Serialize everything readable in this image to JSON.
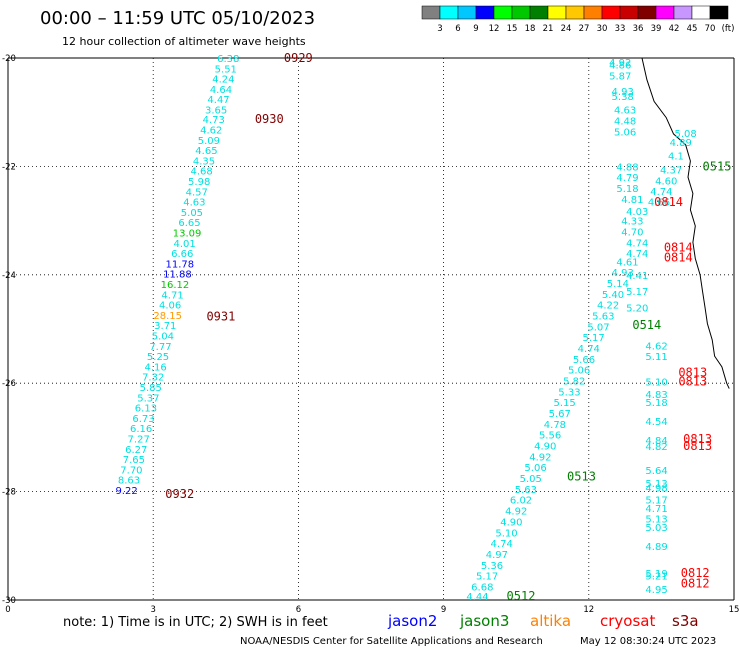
{
  "header": {
    "title": "00:00 – 11:59 UTC 05/10/2023",
    "subtitle": "12 hour collection of altimeter wave heights"
  },
  "colorbar": {
    "colors": [
      "#808080",
      "#00ffff",
      "#00c8ff",
      "#0000ff",
      "#00ff00",
      "#00c800",
      "#008000",
      "#ffff00",
      "#ffc800",
      "#ff8000",
      "#ff0000",
      "#c80000",
      "#800000",
      "#ff00ff",
      "#c896ff",
      "#ffffff",
      "#000000"
    ],
    "ticks": [
      "3",
      "6",
      "9",
      "12",
      "15",
      "18",
      "21",
      "24",
      "27",
      "30",
      "33",
      "36",
      "39",
      "42",
      "45",
      "70",
      "(ft)"
    ]
  },
  "notes": {
    "note_text": "note:  1) Time is in UTC;  2) SWH is in feet"
  },
  "satellites": [
    {
      "name": "jason2",
      "color": "#0000ff"
    },
    {
      "name": "jason3",
      "color": "#008000"
    },
    {
      "name": "altika",
      "color": "#ff8000"
    },
    {
      "name": "cryosat",
      "color": "#ff0000"
    },
    {
      "name": "s3a",
      "color": "#800000"
    }
  ],
  "footer": {
    "credit": "NOAA/NESDIS Center for Satellite Applications and Research",
    "timestamp": "May 12 08:30:24 UTC 2023"
  },
  "chart_data": {
    "type": "scatter",
    "title": "00:00 – 11:59 UTC 05/10/2023",
    "subtitle": "12 hour collection of altimeter wave heights",
    "xlim": [
      0,
      15
    ],
    "ylim": [
      -30,
      -20
    ],
    "x_ticks": [
      "0",
      "3",
      "6",
      "9",
      "12",
      "15"
    ],
    "y_ticks": [
      "-20",
      "-22",
      "-24",
      "-26",
      "-28",
      "-30"
    ],
    "grid": true,
    "values_unit": "ft",
    "time_labels": [
      {
        "text": "0929",
        "x": 5.7,
        "y": -20.0,
        "color": "#800000"
      },
      {
        "text": "0930",
        "x": 5.1,
        "y": -21.13,
        "color": "#800000"
      },
      {
        "text": "0931",
        "x": 4.1,
        "y": -24.77,
        "color": "#800000"
      },
      {
        "text": "0932",
        "x": 3.25,
        "y": -28.04,
        "color": "#800000"
      },
      {
        "text": "0515",
        "x": 14.35,
        "y": -22.0,
        "color": "#008000"
      },
      {
        "text": "0514",
        "x": 12.9,
        "y": -24.93,
        "color": "#008000"
      },
      {
        "text": "0513",
        "x": 11.55,
        "y": -27.72,
        "color": "#008000"
      },
      {
        "text": "0512",
        "x": 10.3,
        "y": -29.93,
        "color": "#008000"
      },
      {
        "text": "0814",
        "x": 13.35,
        "y": -22.66,
        "color": "#ff0000"
      },
      {
        "text": "0814",
        "x": 13.55,
        "y": -23.5,
        "color": "#ff0000"
      },
      {
        "text": "0814",
        "x": 13.55,
        "y": -23.68,
        "color": "#ff0000"
      },
      {
        "text": "0813",
        "x": 13.85,
        "y": -25.8,
        "color": "#ff0000"
      },
      {
        "text": "0813",
        "x": 13.85,
        "y": -25.97,
        "color": "#ff0000"
      },
      {
        "text": "0813",
        "x": 13.95,
        "y": -27.03,
        "color": "#ff0000"
      },
      {
        "text": "0813",
        "x": 13.95,
        "y": -27.16,
        "color": "#ff0000"
      },
      {
        "text": "0812",
        "x": 13.9,
        "y": -29.5,
        "color": "#ff0000"
      },
      {
        "text": "0812",
        "x": 13.9,
        "y": -29.7,
        "color": "#ff0000"
      }
    ],
    "series": [
      {
        "name": "s3a track",
        "points": [
          {
            "x": 4.55,
            "y": -20.0,
            "v": "6.38",
            "c": "#00e0e0"
          },
          {
            "x": 4.5,
            "y": -20.19,
            "v": "5.51",
            "c": "#00e0e0"
          },
          {
            "x": 4.45,
            "y": -20.38,
            "v": "4.24",
            "c": "#00e0e0"
          },
          {
            "x": 4.4,
            "y": -20.57,
            "v": "4.64",
            "c": "#00e0e0"
          },
          {
            "x": 4.35,
            "y": -20.76,
            "v": "4.47",
            "c": "#00e0e0"
          },
          {
            "x": 4.3,
            "y": -20.95,
            "v": "3.65",
            "c": "#00e0e0"
          },
          {
            "x": 4.25,
            "y": -21.13,
            "v": "4.73",
            "c": "#00e0e0"
          },
          {
            "x": 4.2,
            "y": -21.32,
            "v": "4.62",
            "c": "#00e0e0"
          },
          {
            "x": 4.15,
            "y": -21.51,
            "v": "5.09",
            "c": "#00e0e0"
          },
          {
            "x": 4.1,
            "y": -21.7,
            "v": "4.65",
            "c": "#00e0e0"
          },
          {
            "x": 4.05,
            "y": -21.89,
            "v": "4.35",
            "c": "#00e0e0"
          },
          {
            "x": 4.0,
            "y": -22.08,
            "v": "4.68",
            "c": "#00e0e0"
          },
          {
            "x": 3.95,
            "y": -22.27,
            "v": "5.98",
            "c": "#00e0e0"
          },
          {
            "x": 3.9,
            "y": -22.46,
            "v": "4.57",
            "c": "#00e0e0"
          },
          {
            "x": 3.85,
            "y": -22.65,
            "v": "4.63",
            "c": "#00e0e0"
          },
          {
            "x": 3.8,
            "y": -22.84,
            "v": "5.05",
            "c": "#00e0e0"
          },
          {
            "x": 3.75,
            "y": -23.03,
            "v": "6.65",
            "c": "#00e0e0"
          },
          {
            "x": 3.7,
            "y": -23.22,
            "v": "13.09",
            "c": "#00c800"
          },
          {
            "x": 3.65,
            "y": -23.41,
            "v": "4.01",
            "c": "#00e0e0"
          },
          {
            "x": 3.6,
            "y": -23.6,
            "v": "6.66",
            "c": "#00e0e0"
          },
          {
            "x": 3.55,
            "y": -23.79,
            "v": "11.78",
            "c": "#0000ff"
          },
          {
            "x": 3.5,
            "y": -23.98,
            "v": "11.88",
            "c": "#0000ff"
          },
          {
            "x": 3.45,
            "y": -24.17,
            "v": "16.12",
            "c": "#00c800"
          },
          {
            "x": 3.4,
            "y": -24.36,
            "v": "4.71",
            "c": "#00e0e0"
          },
          {
            "x": 3.35,
            "y": -24.55,
            "v": "4.06",
            "c": "#00e0e0"
          },
          {
            "x": 3.3,
            "y": -24.74,
            "v": "28.15",
            "c": "#ff9900"
          },
          {
            "x": 3.25,
            "y": -24.93,
            "v": "3.71",
            "c": "#00e0e0"
          },
          {
            "x": 3.2,
            "y": -25.12,
            "v": "5.04",
            "c": "#00e0e0"
          },
          {
            "x": 3.15,
            "y": -25.31,
            "v": "7.77",
            "c": "#00e0e0"
          },
          {
            "x": 3.1,
            "y": -25.5,
            "v": "5.25",
            "c": "#00e0e0"
          },
          {
            "x": 3.05,
            "y": -25.69,
            "v": "4.16",
            "c": "#00e0e0"
          },
          {
            "x": 3.0,
            "y": -25.88,
            "v": "7.32",
            "c": "#00e0e0"
          },
          {
            "x": 2.95,
            "y": -26.07,
            "v": "5.85",
            "c": "#00e0e0"
          },
          {
            "x": 2.9,
            "y": -26.26,
            "v": "5.37",
            "c": "#00e0e0"
          },
          {
            "x": 2.85,
            "y": -26.45,
            "v": "6.13",
            "c": "#00e0e0"
          },
          {
            "x": 2.8,
            "y": -26.64,
            "v": "6.73",
            "c": "#00e0e0"
          },
          {
            "x": 2.75,
            "y": -26.83,
            "v": "6.16",
            "c": "#00e0e0"
          },
          {
            "x": 2.7,
            "y": -27.02,
            "v": "7.27",
            "c": "#00e0e0"
          },
          {
            "x": 2.65,
            "y": -27.21,
            "v": "6.27",
            "c": "#00e0e0"
          },
          {
            "x": 2.6,
            "y": -27.4,
            "v": "7.65",
            "c": "#00e0e0"
          },
          {
            "x": 2.55,
            "y": -27.59,
            "v": "7.70",
            "c": "#00e0e0"
          },
          {
            "x": 2.5,
            "y": -27.78,
            "v": "8.63",
            "c": "#00e0e0"
          },
          {
            "x": 2.45,
            "y": -27.97,
            "v": "9.22",
            "c": "#0000ff"
          }
        ]
      },
      {
        "name": "jason3 track",
        "points": [
          {
            "x": 9.7,
            "y": -29.93,
            "v": "4.44",
            "c": "#00e0e0"
          },
          {
            "x": 9.8,
            "y": -29.75,
            "v": "6.68",
            "c": "#00e0e0"
          },
          {
            "x": 9.9,
            "y": -29.55,
            "v": "5.17",
            "c": "#00e0e0"
          },
          {
            "x": 10.0,
            "y": -29.35,
            "v": "5.36",
            "c": "#00e0e0"
          },
          {
            "x": 10.1,
            "y": -29.15,
            "v": "4.97",
            "c": "#00e0e0"
          },
          {
            "x": 10.2,
            "y": -28.95,
            "v": "4.74",
            "c": "#00e0e0"
          },
          {
            "x": 10.3,
            "y": -28.75,
            "v": "5.10",
            "c": "#00e0e0"
          },
          {
            "x": 10.4,
            "y": -28.55,
            "v": "4.90",
            "c": "#00e0e0"
          },
          {
            "x": 10.5,
            "y": -28.35,
            "v": "4.92",
            "c": "#00e0e0"
          },
          {
            "x": 10.6,
            "y": -28.15,
            "v": "6.02",
            "c": "#00e0e0"
          },
          {
            "x": 10.7,
            "y": -27.95,
            "v": "5.63",
            "c": "#00e0e0"
          },
          {
            "x": 10.8,
            "y": -27.75,
            "v": "5.05",
            "c": "#00e0e0"
          },
          {
            "x": 10.9,
            "y": -27.55,
            "v": "5.06",
            "c": "#00e0e0"
          },
          {
            "x": 11.0,
            "y": -27.35,
            "v": "4.92",
            "c": "#00e0e0"
          },
          {
            "x": 11.1,
            "y": -27.15,
            "v": "4.90",
            "c": "#00e0e0"
          },
          {
            "x": 11.2,
            "y": -26.95,
            "v": "5.56",
            "c": "#00e0e0"
          },
          {
            "x": 11.3,
            "y": -26.75,
            "v": "4.78",
            "c": "#00e0e0"
          },
          {
            "x": 11.4,
            "y": -26.55,
            "v": "5.67",
            "c": "#00e0e0"
          },
          {
            "x": 11.5,
            "y": -26.35,
            "v": "5.15",
            "c": "#00e0e0"
          },
          {
            "x": 11.6,
            "y": -26.15,
            "v": "5.33",
            "c": "#00e0e0"
          },
          {
            "x": 11.7,
            "y": -25.95,
            "v": "5.82",
            "c": "#00e0e0"
          },
          {
            "x": 11.8,
            "y": -25.75,
            "v": "5.06",
            "c": "#00e0e0"
          },
          {
            "x": 11.9,
            "y": -25.55,
            "v": "5.66",
            "c": "#00e0e0"
          },
          {
            "x": 12.0,
            "y": -25.35,
            "v": "4.74",
            "c": "#00e0e0"
          },
          {
            "x": 12.1,
            "y": -25.15,
            "v": "5.17",
            "c": "#00e0e0"
          },
          {
            "x": 12.2,
            "y": -24.95,
            "v": "5.07",
            "c": "#00e0e0"
          },
          {
            "x": 12.3,
            "y": -24.75,
            "v": "5.63",
            "c": "#00e0e0"
          },
          {
            "x": 12.4,
            "y": -24.55,
            "v": "4.22",
            "c": "#00e0e0"
          },
          {
            "x": 12.5,
            "y": -24.35,
            "v": "5.40",
            "c": "#00e0e0"
          },
          {
            "x": 12.6,
            "y": -24.15,
            "v": "5.14",
            "c": "#00e0e0"
          },
          {
            "x": 12.7,
            "y": -23.95,
            "v": "4.93",
            "c": "#00e0e0"
          },
          {
            "x": 12.8,
            "y": -23.75,
            "v": "4.61",
            "c": "#00e0e0"
          }
        ]
      },
      {
        "name": "jason3 track north",
        "points": [
          {
            "x": 12.65,
            "y": -20.07,
            "v": "4.92",
            "c": "#00e0e0"
          },
          {
            "x": 12.65,
            "y": -20.12,
            "v": "4.86",
            "c": "#00e0e0"
          },
          {
            "x": 12.65,
            "y": -20.32,
            "v": "5.87",
            "c": "#00e0e0"
          },
          {
            "x": 12.7,
            "y": -20.61,
            "v": "4.93",
            "c": "#00e0e0"
          },
          {
            "x": 12.7,
            "y": -20.7,
            "v": "5.38",
            "c": "#00e0e0"
          },
          {
            "x": 12.75,
            "y": -20.95,
            "v": "4.63",
            "c": "#00e0e0"
          },
          {
            "x": 12.75,
            "y": -21.15,
            "v": "4.48",
            "c": "#00e0e0"
          },
          {
            "x": 12.75,
            "y": -21.36,
            "v": "5.06",
            "c": "#00e0e0"
          },
          {
            "x": 14.0,
            "y": -21.38,
            "v": "5.08",
            "c": "#00e0e0"
          },
          {
            "x": 13.9,
            "y": -21.55,
            "v": "4.89",
            "c": "#00e0e0"
          },
          {
            "x": 13.8,
            "y": -21.8,
            "v": "4.1",
            "c": "#00e0e0"
          },
          {
            "x": 13.7,
            "y": -22.06,
            "v": "4.37",
            "c": "#00e0e0"
          },
          {
            "x": 13.6,
            "y": -22.26,
            "v": "4.60",
            "c": "#00e0e0"
          },
          {
            "x": 13.5,
            "y": -22.45,
            "v": "4.74",
            "c": "#00e0e0"
          },
          {
            "x": 13.45,
            "y": -22.65,
            "v": "4.66",
            "c": "#00e0e0"
          },
          {
            "x": 12.8,
            "y": -22.0,
            "v": "4.88",
            "c": "#00e0e0"
          },
          {
            "x": 12.8,
            "y": -22.2,
            "v": "4.79",
            "c": "#00e0e0"
          },
          {
            "x": 12.8,
            "y": -22.4,
            "v": "5.18",
            "c": "#00e0e0"
          },
          {
            "x": 12.9,
            "y": -22.6,
            "v": "4.81",
            "c": "#00e0e0"
          },
          {
            "x": 13.0,
            "y": -22.82,
            "v": "4.03",
            "c": "#00e0e0"
          },
          {
            "x": 12.9,
            "y": -23.0,
            "v": "4.33",
            "c": "#00e0e0"
          },
          {
            "x": 12.9,
            "y": -23.2,
            "v": "4.70",
            "c": "#00e0e0"
          },
          {
            "x": 13.0,
            "y": -23.4,
            "v": "4.74",
            "c": "#00e0e0"
          },
          {
            "x": 13.0,
            "y": -23.6,
            "v": "4.74",
            "c": "#00e0e0"
          },
          {
            "x": 13.0,
            "y": -24.0,
            "v": "4.41",
            "c": "#00e0e0"
          },
          {
            "x": 13.0,
            "y": -24.3,
            "v": "5.17",
            "c": "#00e0e0"
          },
          {
            "x": 13.0,
            "y": -24.6,
            "v": "5.20",
            "c": "#00e0e0"
          }
        ]
      },
      {
        "name": "cryosat track",
        "points": [
          {
            "x": 13.4,
            "y": -25.3,
            "v": "4.62",
            "c": "#00e0e0"
          },
          {
            "x": 13.4,
            "y": -25.5,
            "v": "5.11",
            "c": "#00e0e0"
          },
          {
            "x": 13.4,
            "y": -25.97,
            "v": "5.10",
            "c": "#00e0e0"
          },
          {
            "x": 13.4,
            "y": -26.2,
            "v": "4.83",
            "c": "#00e0e0"
          },
          {
            "x": 13.4,
            "y": -26.35,
            "v": "5.18",
            "c": "#00e0e0"
          },
          {
            "x": 13.4,
            "y": -26.7,
            "v": "4.54",
            "c": "#00e0e0"
          },
          {
            "x": 13.4,
            "y": -27.05,
            "v": "4.84",
            "c": "#00e0e0"
          },
          {
            "x": 13.4,
            "y": -27.16,
            "v": "4.82",
            "c": "#00e0e0"
          },
          {
            "x": 13.4,
            "y": -27.6,
            "v": "5.64",
            "c": "#00e0e0"
          },
          {
            "x": 13.4,
            "y": -27.84,
            "v": "5.13",
            "c": "#00e0e0"
          },
          {
            "x": 13.4,
            "y": -27.92,
            "v": "4.98",
            "c": "#00e0e0"
          },
          {
            "x": 13.4,
            "y": -28.15,
            "v": "5.17",
            "c": "#00e0e0"
          },
          {
            "x": 13.4,
            "y": -28.3,
            "v": "4.71",
            "c": "#00e0e0"
          },
          {
            "x": 13.4,
            "y": -28.5,
            "v": "5.13",
            "c": "#00e0e0"
          },
          {
            "x": 13.4,
            "y": -28.65,
            "v": "5.03",
            "c": "#00e0e0"
          },
          {
            "x": 13.4,
            "y": -29.0,
            "v": "4.89",
            "c": "#00e0e0"
          },
          {
            "x": 13.4,
            "y": -29.5,
            "v": "5.19",
            "c": "#00e0e0"
          },
          {
            "x": 13.4,
            "y": -29.55,
            "v": "5.21",
            "c": "#00e0e0"
          },
          {
            "x": 13.4,
            "y": -29.8,
            "v": "4.95",
            "c": "#00e0e0"
          }
        ]
      }
    ]
  }
}
